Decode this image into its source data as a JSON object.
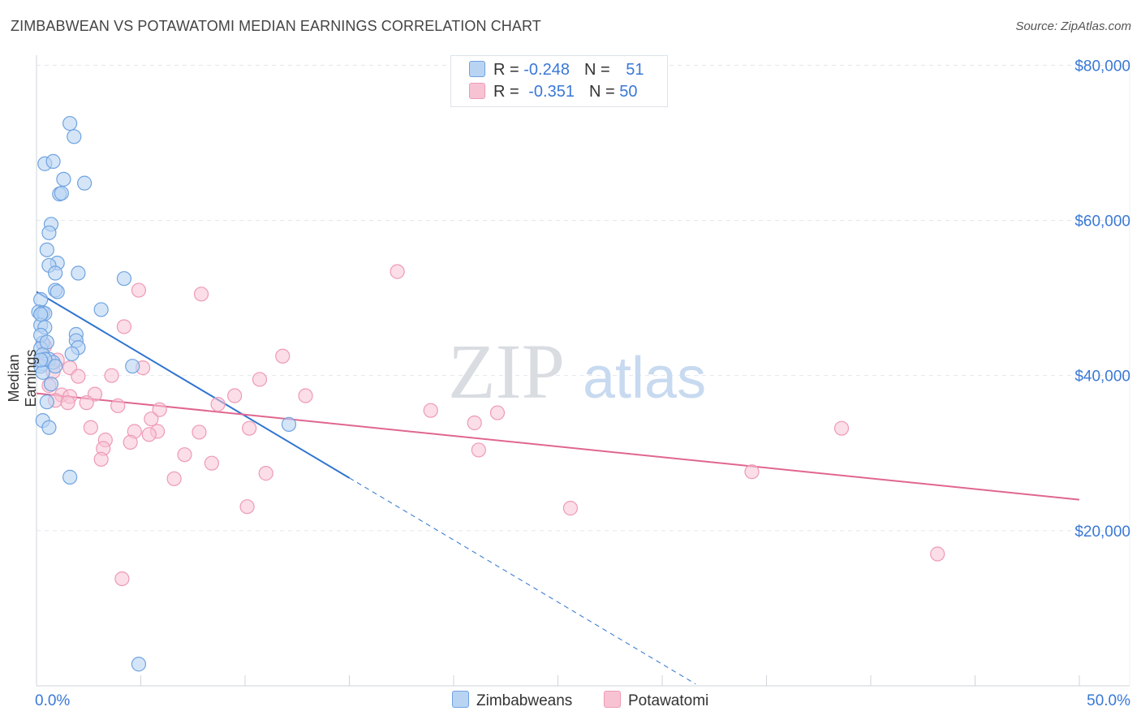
{
  "title": "ZIMBABWEAN VS POTAWATOMI MEDIAN EARNINGS CORRELATION CHART",
  "source": "Source: ZipAtlas.com",
  "watermark": {
    "zip": "ZIP",
    "atlas": "atlas"
  },
  "colors": {
    "blue_fill": "#b9d3f3",
    "blue_stroke": "#6fa3e0",
    "blue_line": "#2f74d0",
    "pink_fill": "#f7c3d3",
    "pink_stroke": "#ee9ab5",
    "pink_line": "#e0668f",
    "axis_text": "#3a78d6",
    "grid": "#e3e7ec"
  },
  "legend": {
    "rows": [
      {
        "r_label": "R = ",
        "r_value": "-0.248",
        "n_label": "N = ",
        "n_value": "51"
      },
      {
        "r_label": "R = ",
        "r_value": "-0.351",
        "n_label": "N = ",
        "n_value": "50"
      }
    ]
  },
  "bottom_legend": [
    "Zimbabweans",
    "Potawatomi"
  ],
  "chart_data": {
    "type": "scatter",
    "title": "ZIMBABWEAN VS POTAWATOMI MEDIAN EARNINGS CORRELATION CHART",
    "xlabel": "",
    "ylabel": "Median Earnings",
    "xlim": [
      0,
      50
    ],
    "ylim": [
      0,
      82000
    ],
    "x_tick_labels": [
      "0.0%",
      "50.0%"
    ],
    "y_ticks": [
      20000,
      40000,
      60000,
      80000
    ],
    "y_tick_labels": [
      "$20,000",
      "$40,000",
      "$60,000",
      "$80,000"
    ],
    "grid": true,
    "series": [
      {
        "name": "Zimbabweans",
        "r": -0.248,
        "n": 51,
        "trend": {
          "x0": 0.0,
          "y0": 50800,
          "x1": 15.0,
          "y1": 26800,
          "dash_to_x": 31.6
        },
        "points": [
          [
            1.6,
            72500
          ],
          [
            1.8,
            70800
          ],
          [
            0.4,
            67300
          ],
          [
            0.8,
            67600
          ],
          [
            1.3,
            65300
          ],
          [
            2.3,
            64800
          ],
          [
            1.1,
            63400
          ],
          [
            1.2,
            63500
          ],
          [
            0.7,
            59500
          ],
          [
            0.6,
            58400
          ],
          [
            0.5,
            56200
          ],
          [
            1.0,
            54500
          ],
          [
            0.6,
            54200
          ],
          [
            2.0,
            53200
          ],
          [
            0.9,
            53200
          ],
          [
            4.2,
            52500
          ],
          [
            0.9,
            51000
          ],
          [
            1.0,
            50800
          ],
          [
            0.2,
            49800
          ],
          [
            0.1,
            48200
          ],
          [
            0.3,
            48100
          ],
          [
            0.4,
            48000
          ],
          [
            3.1,
            48500
          ],
          [
            0.2,
            46500
          ],
          [
            0.4,
            46200
          ],
          [
            1.9,
            45300
          ],
          [
            1.9,
            44500
          ],
          [
            0.3,
            44200
          ],
          [
            0.2,
            43500
          ],
          [
            2.0,
            43600
          ],
          [
            0.3,
            42700
          ],
          [
            1.7,
            42800
          ],
          [
            0.6,
            42100
          ],
          [
            0.3,
            41500
          ],
          [
            0.8,
            41700
          ],
          [
            0.2,
            41200
          ],
          [
            4.6,
            41200
          ],
          [
            0.3,
            40400
          ],
          [
            0.7,
            38900
          ],
          [
            0.5,
            36600
          ],
          [
            0.3,
            34200
          ],
          [
            0.6,
            33300
          ],
          [
            12.1,
            33700
          ],
          [
            1.6,
            26900
          ],
          [
            4.9,
            2800
          ],
          [
            0.2,
            47900
          ],
          [
            0.4,
            42100
          ],
          [
            0.9,
            41200
          ],
          [
            0.2,
            45200
          ],
          [
            0.5,
            44300
          ],
          [
            0.2,
            42000
          ]
        ]
      },
      {
        "name": "Potawatomi",
        "r": -0.351,
        "n": 50,
        "trend": {
          "x0": 0.0,
          "y0": 37700,
          "x1": 50.0,
          "y1": 24000
        },
        "points": [
          [
            17.3,
            53400
          ],
          [
            4.9,
            51000
          ],
          [
            7.9,
            50500
          ],
          [
            4.2,
            46300
          ],
          [
            11.8,
            42500
          ],
          [
            0.4,
            43800
          ],
          [
            1.0,
            42000
          ],
          [
            5.1,
            41000
          ],
          [
            1.6,
            41000
          ],
          [
            0.8,
            40500
          ],
          [
            3.6,
            40000
          ],
          [
            2.0,
            39900
          ],
          [
            10.7,
            39500
          ],
          [
            0.6,
            38700
          ],
          [
            1.2,
            37500
          ],
          [
            0.9,
            36800
          ],
          [
            1.6,
            37300
          ],
          [
            9.5,
            37400
          ],
          [
            12.9,
            37400
          ],
          [
            2.8,
            37600
          ],
          [
            1.5,
            36500
          ],
          [
            2.4,
            36500
          ],
          [
            3.9,
            36100
          ],
          [
            8.7,
            36300
          ],
          [
            5.9,
            35600
          ],
          [
            18.9,
            35500
          ],
          [
            22.1,
            35200
          ],
          [
            21.0,
            33900
          ],
          [
            5.5,
            34400
          ],
          [
            2.6,
            33300
          ],
          [
            10.2,
            33200
          ],
          [
            4.7,
            32800
          ],
          [
            5.8,
            32800
          ],
          [
            7.8,
            32700
          ],
          [
            5.4,
            32400
          ],
          [
            38.6,
            33200
          ],
          [
            3.3,
            31700
          ],
          [
            4.5,
            31400
          ],
          [
            3.2,
            30600
          ],
          [
            21.2,
            30400
          ],
          [
            7.1,
            29800
          ],
          [
            3.1,
            29200
          ],
          [
            8.4,
            28700
          ],
          [
            11.0,
            27400
          ],
          [
            6.6,
            26700
          ],
          [
            34.3,
            27600
          ],
          [
            10.1,
            23100
          ],
          [
            25.6,
            22900
          ],
          [
            4.1,
            13800
          ],
          [
            43.2,
            17000
          ]
        ]
      }
    ]
  }
}
